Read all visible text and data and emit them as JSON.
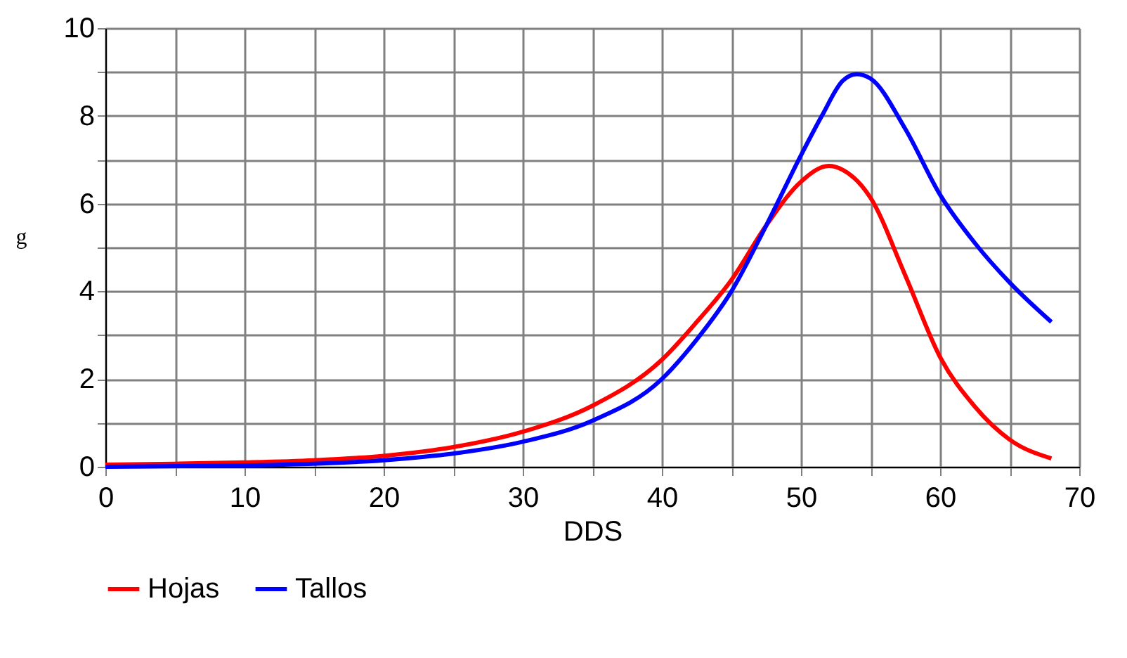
{
  "chart_data": {
    "type": "line",
    "xlabel": "DDS",
    "ylabel": "g",
    "xlim": [
      0,
      70
    ],
    "ylim": [
      0,
      10
    ],
    "xticks": [
      0,
      {
        "value": 5,
        "label": null
      },
      10,
      {
        "value": 15,
        "label": null
      },
      20,
      {
        "value": 25,
        "label": null
      },
      30,
      {
        "value": 35,
        "label": null
      },
      40,
      {
        "value": 45,
        "label": null
      },
      50,
      {
        "value": 55,
        "label": null
      },
      60,
      {
        "value": 65,
        "label": null
      },
      70
    ],
    "yticks": [
      0,
      {
        "value": 1,
        "label": null
      },
      2,
      {
        "value": 3,
        "label": null
      },
      4,
      {
        "value": 5,
        "label": null
      },
      6,
      {
        "value": 7,
        "label": null
      },
      8,
      {
        "value": 9,
        "label": null
      },
      10
    ],
    "grid": true,
    "legend": "bottom",
    "marker": "none",
    "line_style": "solid",
    "series": [
      {
        "name": "Hojas",
        "color": "#ff0000",
        "x": [
          0,
          5,
          10,
          15,
          20,
          25,
          30,
          35,
          40,
          42.5,
          45,
          47.5,
          50,
          52,
          53,
          55,
          57.5,
          60,
          62.5,
          65,
          68
        ],
        "values": [
          0.05,
          0.07,
          0.1,
          0.15,
          0.25,
          0.45,
          0.8,
          1.39,
          2.44,
          3.3,
          4.26,
          5.5,
          6.5,
          6.86,
          6.77,
          6.13,
          4.36,
          2.5,
          1.37,
          0.62,
          0.19
        ]
      },
      {
        "name": "Tallos",
        "color": "#0000ff",
        "x": [
          0,
          10,
          20,
          25,
          30,
          35,
          40,
          42.5,
          45,
          47.5,
          50,
          51.5,
          53,
          54,
          55,
          57.5,
          60,
          62.5,
          65,
          68
        ],
        "values": [
          0.0,
          0.03,
          0.15,
          0.3,
          0.57,
          1.05,
          2.0,
          2.9,
          4.0,
          5.5,
          7.1,
          8.0,
          8.8,
          8.95,
          8.85,
          7.7,
          6.2,
          5.1,
          4.2,
          3.3
        ]
      }
    ]
  }
}
